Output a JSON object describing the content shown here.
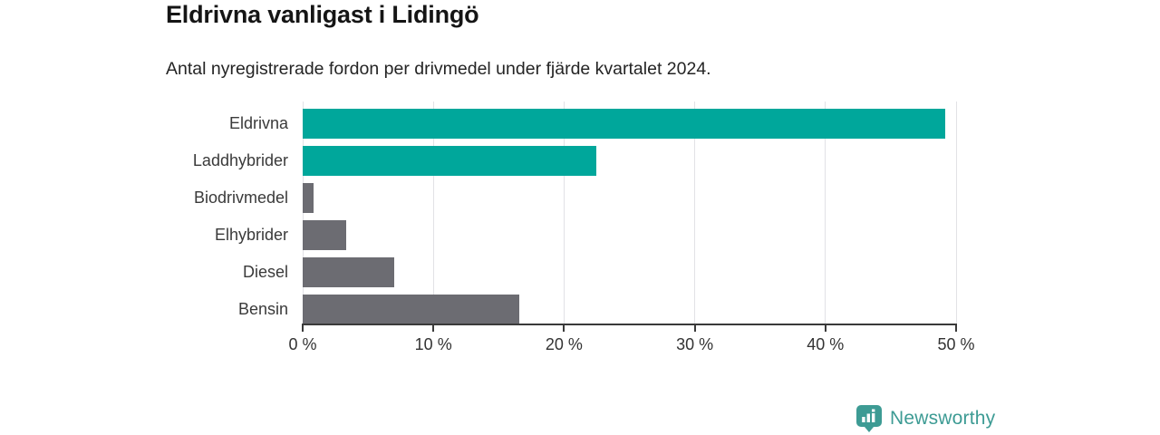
{
  "title": "Eldrivna vanligast i Lidingö",
  "subtitle": "Antal nyregistrerade fordon per drivmedel under fjärde kvartalet 2024.",
  "chart_data": {
    "type": "bar",
    "orientation": "horizontal",
    "title": "Eldrivna vanligast i Lidingö",
    "subtitle": "Antal nyregistrerade fordon per drivmedel under fjärde kvartalet 2024.",
    "categories": [
      "Eldrivna",
      "Laddhybrider",
      "Biodrivmedel",
      "Elhybrider",
      "Diesel",
      "Bensin"
    ],
    "values": [
      49.2,
      22.5,
      0.8,
      3.3,
      7.0,
      16.6
    ],
    "unit": "%",
    "xlim": [
      0,
      50
    ],
    "x_ticks": [
      0,
      10,
      20,
      30,
      40,
      50
    ],
    "x_tick_labels": [
      "0 %",
      "10 %",
      "20 %",
      "30 %",
      "40 %",
      "50 %"
    ],
    "grid": true,
    "legend": false,
    "bar_colors": [
      "#00a79b",
      "#00a79b",
      "#6c6c72",
      "#6c6c72",
      "#6c6c72",
      "#6c6c72"
    ]
  },
  "colors": {
    "teal": "#00a79b",
    "gray": "#6c6c72",
    "axis": "#3a3a3a",
    "gridline": "#e2e2e6",
    "brand": "#3d9b94"
  },
  "branding": {
    "logo_text": "Newsworthy",
    "logo_icon": "bar-chart-pin-icon"
  }
}
